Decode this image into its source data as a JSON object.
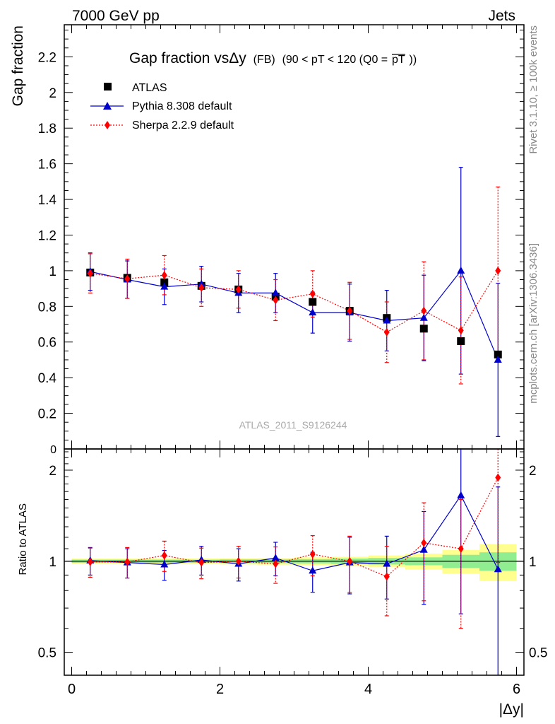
{
  "header": {
    "left": "7000 GeV pp",
    "right": "Jets"
  },
  "side_labels": {
    "rivet": "Rivet 3.1.10, ≥ 100k events",
    "mcplots": "mcplots.cern.ch [arXiv:1306.3436]"
  },
  "watermark": "ATLAS_2011_S9126244",
  "chart_data": {
    "type": "scatter",
    "title_main": "Gap fraction vsΔy",
    "title_small": "(FB)",
    "title_cut": "(90 < pT < 120 (Q0 =",
    "title_over": "pT",
    "title_end": "))",
    "ylabel": "Gap fraction",
    "ratio_ylabel": "Ratio to ATLAS",
    "xlabel": "|Δy|",
    "xlim": [
      -0.1,
      6.1
    ],
    "ylim": [
      0,
      2.38
    ],
    "ratio_ylim": [
      0.42,
      2.35
    ],
    "ratio_scale": "log",
    "x_ticks": [
      0,
      2,
      4,
      6
    ],
    "x_tick_labels": [
      "0",
      "2",
      "4",
      "6"
    ],
    "y_ticks": [
      0.2,
      0.4,
      0.6,
      0.8,
      1,
      1.2,
      1.4,
      1.6,
      1.8,
      2,
      2.2
    ],
    "y_tick_labels": [
      "0.2",
      "0.4",
      "0.6",
      "0.8",
      "1",
      "1.2",
      "1.4",
      "1.6",
      "1.8",
      "2",
      "2.2"
    ],
    "y_zero_label": "0",
    "ratio_ticks": [
      0.5,
      1,
      2
    ],
    "ratio_tick_labels": [
      "0.5",
      "1",
      "2"
    ],
    "x": [
      0.25,
      0.75,
      1.25,
      1.75,
      2.25,
      2.75,
      3.25,
      3.75,
      4.25,
      4.75,
      5.25,
      5.75
    ],
    "series": [
      {
        "name": "ATLAS",
        "color": "#000000",
        "marker": "square",
        "values": [
          0.99,
          0.96,
          0.935,
          0.915,
          0.895,
          0.855,
          0.825,
          0.775,
          0.735,
          0.675,
          0.605,
          0.53
        ],
        "err": [
          0.01,
          0.01,
          0.01,
          0.01,
          0.01,
          0.01,
          0.01,
          0.015,
          0.015,
          0.02,
          0.03,
          0.035
        ]
      },
      {
        "name": "Pythia 8.308 default",
        "color": "#0000cc",
        "marker": "triangle",
        "line": "solid",
        "values": [
          0.995,
          0.95,
          0.91,
          0.925,
          0.875,
          0.875,
          0.765,
          0.765,
          0.72,
          0.735,
          1.0,
          0.5
        ],
        "err": [
          0.105,
          0.105,
          0.1,
          0.1,
          0.11,
          0.11,
          0.115,
          0.16,
          0.17,
          0.24,
          0.58,
          0.43
        ],
        "ratio": [
          1.005,
          0.99,
          0.975,
          1.01,
          0.98,
          1.025,
          0.93,
          0.99,
          0.98,
          1.09,
          1.65,
          0.94
        ],
        "ratio_err": [
          0.105,
          0.11,
          0.11,
          0.11,
          0.12,
          0.13,
          0.14,
          0.21,
          0.23,
          0.37,
          0.98,
          0.82
        ]
      },
      {
        "name": "Sherpa 2.2.9 default",
        "color": "#ff0000",
        "marker": "diamond",
        "line": "dotted",
        "values": [
          0.985,
          0.955,
          0.975,
          0.905,
          0.895,
          0.835,
          0.87,
          0.775,
          0.655,
          0.775,
          0.665,
          1.0
        ],
        "err": [
          0.11,
          0.11,
          0.11,
          0.105,
          0.105,
          0.115,
          0.13,
          0.16,
          0.17,
          0.275,
          0.3,
          0.47
        ],
        "ratio": [
          0.995,
          0.995,
          1.045,
          0.99,
          1.0,
          0.98,
          1.055,
          1.0,
          0.89,
          1.15,
          1.1,
          1.89
        ],
        "ratio_err": [
          0.11,
          0.115,
          0.12,
          0.115,
          0.12,
          0.135,
          0.16,
          0.21,
          0.23,
          0.41,
          0.5,
          0.9
        ]
      }
    ],
    "ratio_band_inner": [
      0.012,
      0.012,
      0.012,
      0.012,
      0.014,
      0.014,
      0.016,
      0.02,
      0.025,
      0.03,
      0.05,
      0.07
    ],
    "ratio_band_outer": [
      0.02,
      0.02,
      0.02,
      0.022,
      0.024,
      0.026,
      0.03,
      0.035,
      0.045,
      0.06,
      0.09,
      0.14
    ],
    "band_colors": {
      "inner": "#90ee90",
      "outer": "#ffff90"
    },
    "grid": false,
    "legend_position": "top-left"
  }
}
